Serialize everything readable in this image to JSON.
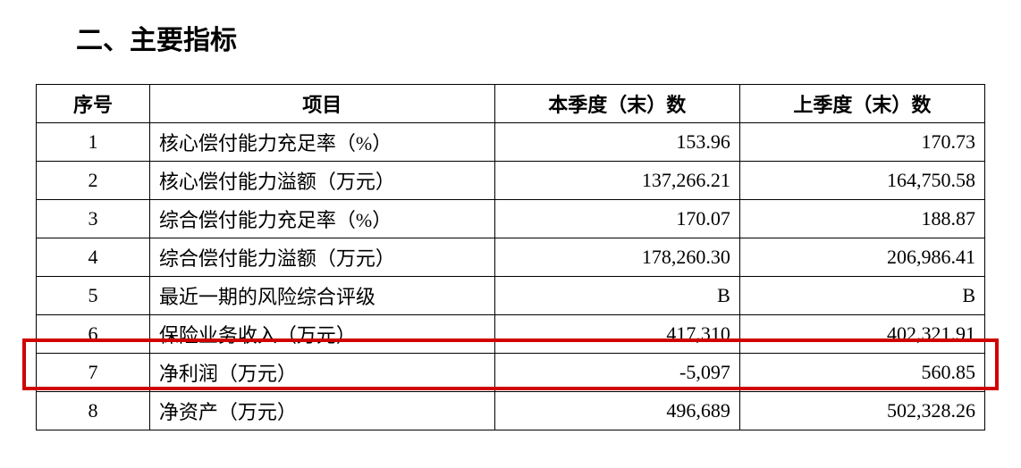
{
  "title": "二、主要指标",
  "table": {
    "headers": {
      "seq": "序号",
      "item": "项目",
      "current": "本季度（末）数",
      "previous": "上季度（末）数"
    },
    "rows": [
      {
        "seq": "1",
        "item": "核心偿付能力充足率（%）",
        "current": "153.96",
        "previous": "170.73"
      },
      {
        "seq": "2",
        "item": "核心偿付能力溢额（万元）",
        "current": "137,266.21",
        "previous": "164,750.58"
      },
      {
        "seq": "3",
        "item": "综合偿付能力充足率（%）",
        "current": "170.07",
        "previous": "188.87"
      },
      {
        "seq": "4",
        "item": "综合偿付能力溢额（万元）",
        "current": "178,260.30",
        "previous": "206,986.41"
      },
      {
        "seq": "5",
        "item": "最近一期的风险综合评级",
        "current": "B",
        "previous": "B"
      },
      {
        "seq": "6",
        "item": "保险业务收入（万元）",
        "current": "417,310",
        "previous": "402,321.91"
      },
      {
        "seq": "7",
        "item": "净利润（万元）",
        "current": "-5,097",
        "previous": "560.85"
      },
      {
        "seq": "8",
        "item": "净资产（万元）",
        "current": "496,689",
        "previous": "502,328.26"
      }
    ]
  },
  "highlight": {
    "color": "#d00000",
    "row_index": 6
  }
}
